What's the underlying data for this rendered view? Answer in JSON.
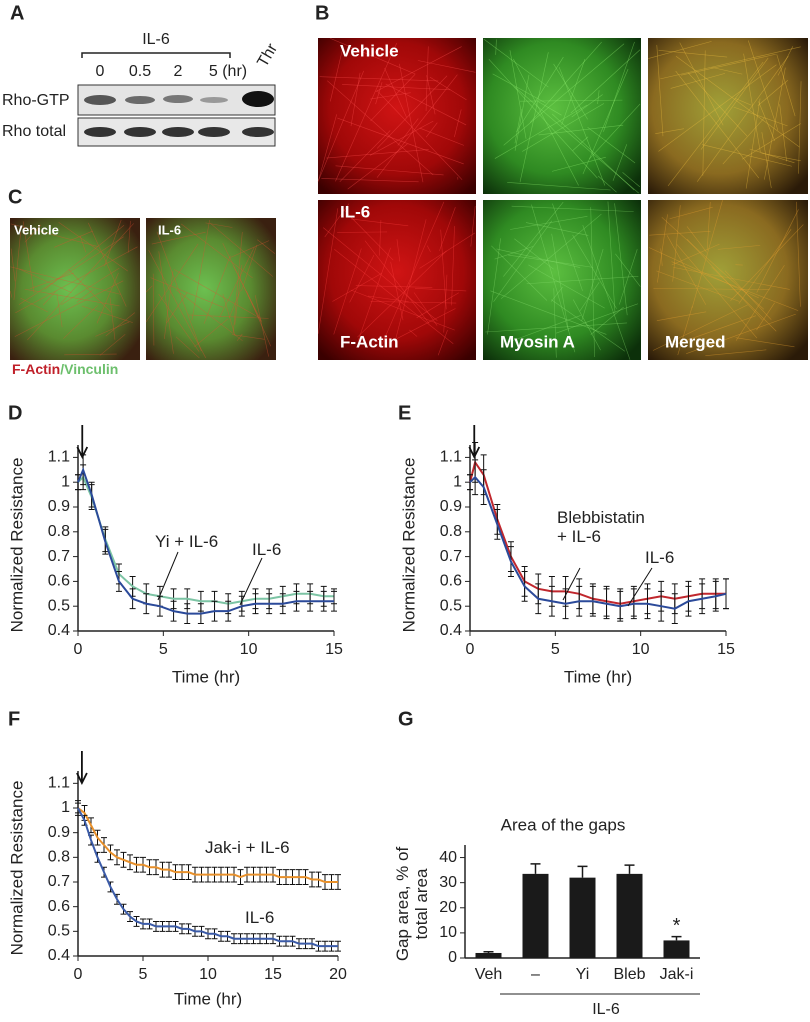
{
  "panel_labels": [
    "A",
    "B",
    "C",
    "D",
    "E",
    "F",
    "G"
  ],
  "blot": {
    "group_label": "IL-6",
    "lanes": [
      "0",
      "0.5",
      "2",
      "5 (hr)",
      "Thr"
    ],
    "rows": [
      "Rho-GTP",
      "Rho total"
    ]
  },
  "microscopy": {
    "rows": [
      "Vehicle",
      "IL-6"
    ],
    "columns": [
      "F-Actin",
      "Myosin A",
      "Merged"
    ]
  },
  "vinculin": {
    "panels": [
      "Vehicle",
      "IL-6"
    ],
    "legend": [
      "F-Actin",
      "/Vinculin"
    ]
  },
  "chart_data": [
    {
      "type": "line",
      "xlabel": "Time (hr)",
      "ylabel": "Normalized Resistance",
      "x": [
        0,
        0.3,
        0.8,
        1.6,
        2.4,
        3.2,
        4,
        4.8,
        5.6,
        6.4,
        7.2,
        8,
        8.8,
        9.6,
        10.4,
        11.2,
        12,
        12.8,
        13.6,
        14.4,
        15
      ],
      "xlim": [
        0,
        15
      ],
      "xticks": [
        0,
        5,
        10,
        15
      ],
      "ylim": [
        0.4,
        1.15
      ],
      "yticks": [
        0.4,
        0.5,
        0.6,
        0.7,
        0.8,
        0.9,
        1,
        1.1
      ],
      "series": [
        {
          "name": "Yi + IL-6",
          "color": "#7cc4a4",
          "values": [
            1.0,
            1.02,
            0.94,
            0.77,
            0.63,
            0.58,
            0.55,
            0.54,
            0.53,
            0.53,
            0.52,
            0.52,
            0.51,
            0.52,
            0.53,
            0.53,
            0.54,
            0.55,
            0.55,
            0.54,
            0.54
          ],
          "errors": [
            0.03,
            0.05,
            0.05,
            0.05,
            0.04,
            0.04,
            0.04,
            0.04,
            0.04,
            0.04,
            0.04,
            0.04,
            0.04,
            0.04,
            0.04,
            0.04,
            0.04,
            0.04,
            0.04,
            0.04,
            0.03
          ]
        },
        {
          "name": "IL-6",
          "color": "#2b4a9a",
          "values": [
            1.0,
            1.05,
            0.95,
            0.76,
            0.6,
            0.53,
            0.51,
            0.5,
            0.48,
            0.47,
            0.47,
            0.48,
            0.48,
            0.5,
            0.51,
            0.51,
            0.51,
            0.52,
            0.52,
            0.52,
            0.52
          ],
          "errors": [
            0.03,
            0.06,
            0.05,
            0.05,
            0.04,
            0.04,
            0.04,
            0.04,
            0.04,
            0.04,
            0.04,
            0.04,
            0.04,
            0.04,
            0.04,
            0.04,
            0.04,
            0.04,
            0.04,
            0.04,
            0.04
          ]
        }
      ]
    },
    {
      "type": "line",
      "xlabel": "Time (hr)",
      "ylabel": "Normalized Resistance",
      "x": [
        0,
        0.3,
        0.8,
        1.6,
        2.4,
        3.2,
        4,
        4.8,
        5.6,
        6.4,
        7.2,
        8,
        8.8,
        9.6,
        10.4,
        11.2,
        12,
        12.8,
        13.6,
        14.4,
        15
      ],
      "xlim": [
        0,
        15
      ],
      "xticks": [
        0,
        5,
        10,
        15
      ],
      "ylim": [
        0.4,
        1.15
      ],
      "yticks": [
        0.4,
        0.5,
        0.6,
        0.7,
        0.8,
        0.9,
        1,
        1.1
      ],
      "series": [
        {
          "name": "Blebbistatin + IL-6",
          "color": "#c0272d",
          "values": [
            1.0,
            1.08,
            1.03,
            0.85,
            0.7,
            0.6,
            0.57,
            0.56,
            0.56,
            0.55,
            0.53,
            0.52,
            0.51,
            0.52,
            0.53,
            0.54,
            0.53,
            0.54,
            0.55,
            0.55,
            0.55
          ],
          "errors": [
            0.03,
            0.08,
            0.08,
            0.06,
            0.06,
            0.06,
            0.06,
            0.06,
            0.06,
            0.06,
            0.06,
            0.06,
            0.06,
            0.06,
            0.06,
            0.06,
            0.06,
            0.06,
            0.06,
            0.06,
            0.06
          ]
        },
        {
          "name": "IL-6",
          "color": "#2b4a9a",
          "values": [
            1.0,
            1.02,
            0.98,
            0.83,
            0.68,
            0.58,
            0.53,
            0.52,
            0.51,
            0.52,
            0.52,
            0.51,
            0.5,
            0.51,
            0.51,
            0.5,
            0.49,
            0.52,
            0.53,
            0.54,
            0.55
          ],
          "errors": [
            0.03,
            0.07,
            0.07,
            0.06,
            0.06,
            0.06,
            0.06,
            0.06,
            0.06,
            0.06,
            0.06,
            0.06,
            0.06,
            0.06,
            0.06,
            0.06,
            0.06,
            0.06,
            0.06,
            0.06,
            0.06
          ]
        }
      ]
    },
    {
      "type": "line",
      "xlabel": "Time (hr)",
      "ylabel": "Normalized Resistance",
      "x": [
        0,
        0.5,
        1,
        1.5,
        2,
        2.5,
        3,
        3.5,
        4,
        4.5,
        5,
        5.5,
        6,
        6.5,
        7,
        7.5,
        8,
        8.5,
        9,
        9.5,
        10,
        10.5,
        11,
        11.5,
        12,
        12.5,
        13,
        13.5,
        14,
        14.5,
        15,
        15.5,
        16,
        16.5,
        17,
        17.5,
        18,
        18.5,
        19,
        19.5,
        20
      ],
      "xlim": [
        0,
        20
      ],
      "xticks": [
        0,
        5,
        10,
        15,
        20
      ],
      "ylim": [
        0.4,
        1.15
      ],
      "yticks": [
        0.4,
        0.5,
        0.6,
        0.7,
        0.8,
        0.9,
        1,
        1.1
      ],
      "series": [
        {
          "name": "Jak-i + IL-6",
          "color": "#e8902a",
          "error": 0.03,
          "values": [
            1.0,
            0.98,
            0.93,
            0.88,
            0.85,
            0.82,
            0.8,
            0.79,
            0.78,
            0.77,
            0.77,
            0.76,
            0.76,
            0.75,
            0.75,
            0.74,
            0.74,
            0.74,
            0.73,
            0.73,
            0.73,
            0.73,
            0.73,
            0.73,
            0.73,
            0.72,
            0.73,
            0.73,
            0.73,
            0.73,
            0.73,
            0.72,
            0.72,
            0.72,
            0.72,
            0.72,
            0.71,
            0.71,
            0.7,
            0.7,
            0.7
          ]
        },
        {
          "name": "IL-6",
          "color": "#3b5ba8",
          "error": 0.02,
          "values": [
            1.0,
            0.95,
            0.87,
            0.8,
            0.74,
            0.68,
            0.63,
            0.59,
            0.56,
            0.54,
            0.53,
            0.53,
            0.52,
            0.52,
            0.52,
            0.52,
            0.51,
            0.51,
            0.5,
            0.5,
            0.49,
            0.49,
            0.48,
            0.48,
            0.47,
            0.47,
            0.47,
            0.47,
            0.47,
            0.47,
            0.47,
            0.46,
            0.46,
            0.46,
            0.45,
            0.45,
            0.45,
            0.44,
            0.44,
            0.44,
            0.44
          ]
        }
      ]
    },
    {
      "type": "bar",
      "title": "Area of the gaps",
      "ylabel": "Gap area, % of total area",
      "categories": [
        "Veh",
        "–",
        "Yi",
        "Bleb",
        "Jak-i"
      ],
      "values": [
        2,
        33.5,
        32,
        33.5,
        7
      ],
      "errors": [
        0.5,
        4,
        4.5,
        3.5,
        1.5
      ],
      "significance": [
        null,
        null,
        null,
        null,
        "*"
      ],
      "group_label": "IL-6",
      "color": "#1a1a1a",
      "ylim": [
        0,
        45
      ],
      "yticks": [
        0,
        10,
        20,
        30,
        40
      ]
    }
  ]
}
